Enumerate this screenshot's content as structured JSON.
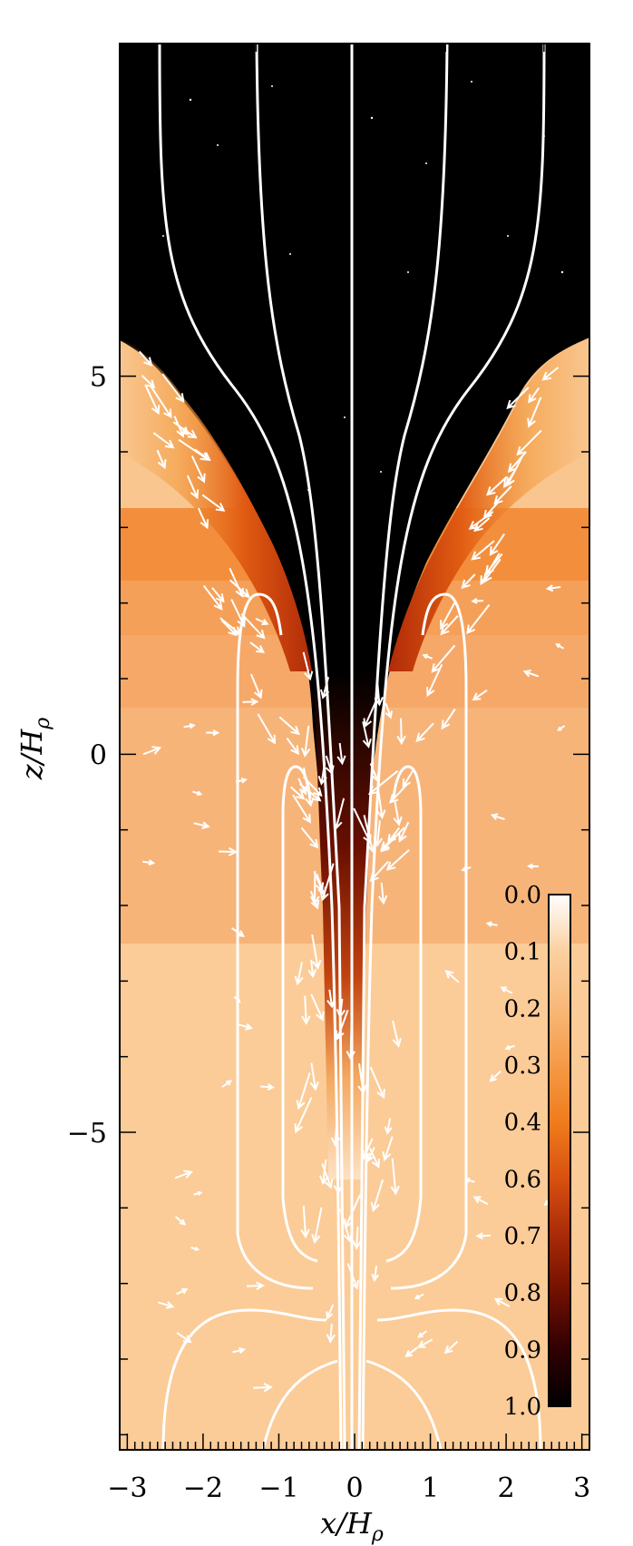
{
  "chart_data": {
    "type": "heatmap",
    "xlabel": "x/H",
    "xlabel_sub": "ρ",
    "ylabel": "z/H",
    "ylabel_sub": "ρ",
    "xlim": [
      -3.1,
      3.1
    ],
    "ylim": [
      -9.2,
      9.4
    ],
    "x_ticks": [
      -3,
      -2,
      -1,
      0,
      1,
      2,
      3
    ],
    "x_tick_labels": [
      "−3",
      "−2",
      "−1",
      "0",
      "1",
      "2",
      "3"
    ],
    "y_ticks": [
      5,
      0,
      -5
    ],
    "y_tick_labels": [
      "5",
      "0",
      "−5"
    ],
    "colorbar": {
      "ticks": [
        0.0,
        0.1,
        0.2,
        0.3,
        0.4,
        0.6,
        0.7,
        0.8,
        0.9,
        1.0
      ],
      "labels": [
        "0.0",
        "0.1",
        "0.2",
        "0.3",
        "0.4",
        "0.6",
        "0.7",
        "0.8",
        "0.9",
        "1.0"
      ]
    },
    "colormap": [
      "#ffffff",
      "#fbd0a0",
      "#f8b878",
      "#f59a46",
      "#f07c1c",
      "#d85010",
      "#a82a08",
      "#701000",
      "#300000",
      "#000000"
    ],
    "overlay": {
      "field_lines": "white",
      "velocity_arrows": "white"
    }
  }
}
